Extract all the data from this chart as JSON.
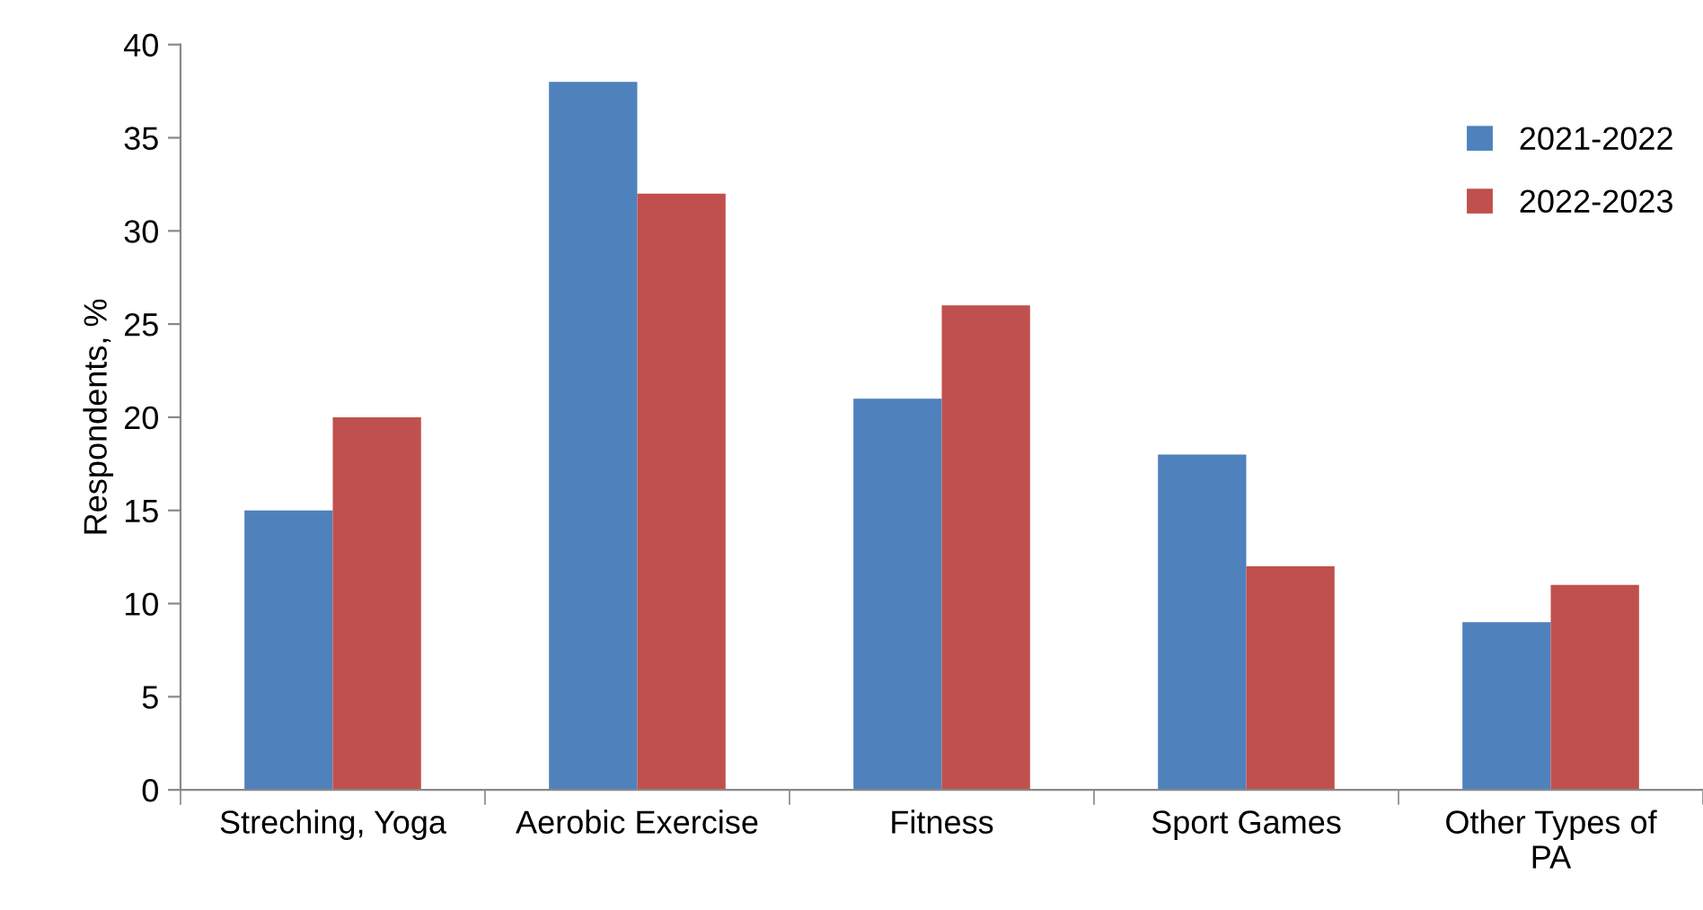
{
  "chart_data": {
    "type": "bar",
    "ylabel": "Respondents, %",
    "categories": [
      "Streching, Yoga",
      "Aerobic Exercise",
      "Fitness",
      "Sport Games",
      "Other Types of\nPA"
    ],
    "series": [
      {
        "name": "2021-2022",
        "color": "#4f81bd",
        "values": [
          15,
          38,
          21,
          18,
          9
        ]
      },
      {
        "name": "2022-2023",
        "color": "#c0504d",
        "values": [
          20,
          32,
          26,
          12,
          11
        ]
      }
    ],
    "ylim": [
      0,
      40
    ],
    "yticks": [
      0,
      5,
      10,
      15,
      20,
      25,
      30,
      35,
      40
    ],
    "grid": false,
    "legend": "top right"
  }
}
